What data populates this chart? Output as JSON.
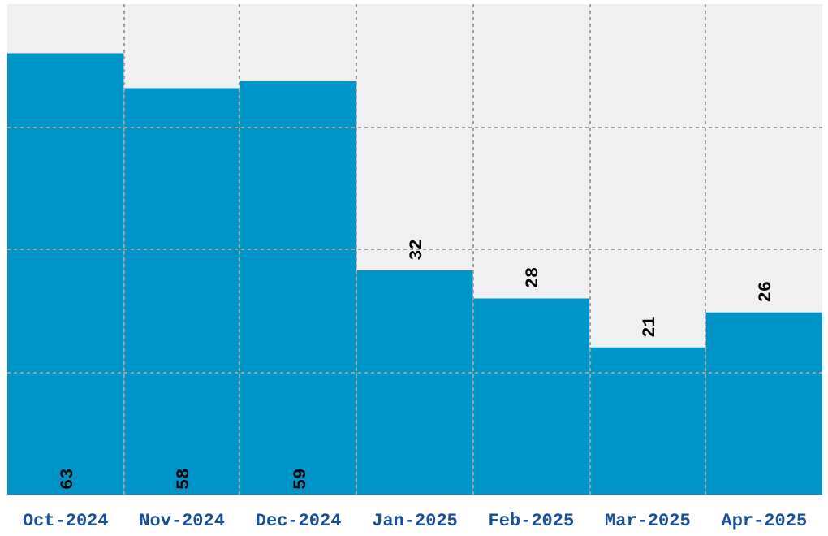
{
  "chart_data": {
    "type": "bar",
    "categories": [
      "Oct-2024",
      "Nov-2024",
      "Dec-2024",
      "Jan-2025",
      "Feb-2025",
      "Mar-2025",
      "Apr-2025"
    ],
    "values": [
      63,
      58,
      59,
      32,
      28,
      21,
      26
    ],
    "color": "#0095c8",
    "ylim": [
      0,
      70
    ],
    "yticks": [
      {
        "value": 17.5,
        "label": null
      },
      {
        "value": 35,
        "label": null
      },
      {
        "value": 52.5,
        "label": null
      }
    ],
    "tick_labels": "x",
    "grid": true,
    "data_labels": true
  }
}
